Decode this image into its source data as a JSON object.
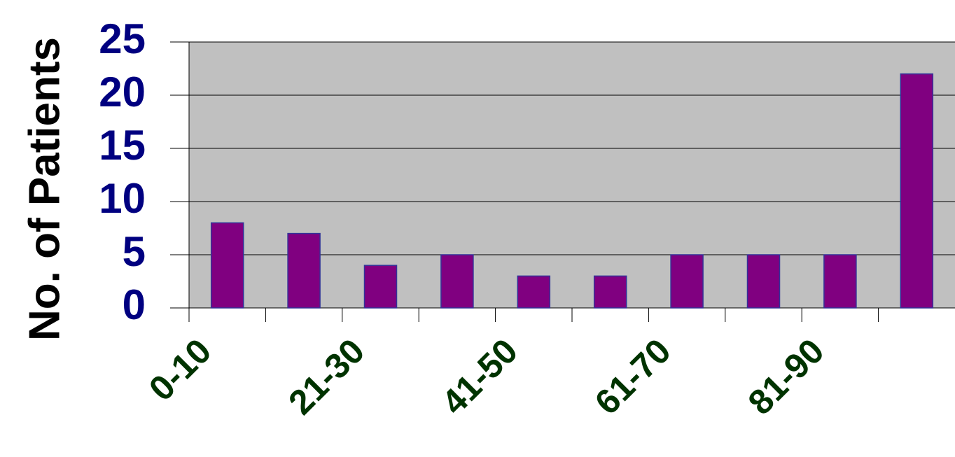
{
  "chart_data": {
    "type": "bar",
    "y_label": "No. of Patients",
    "categories": [
      "0-10",
      null,
      "21-30",
      null,
      "41-50",
      null,
      "61-70",
      null,
      "81-90",
      null
    ],
    "values": [
      8,
      7,
      4,
      5,
      3,
      3,
      5,
      5,
      5,
      22
    ],
    "color": "#800080",
    "ylim": [
      0,
      25
    ],
    "yticks": [
      0,
      5,
      10,
      15,
      20,
      25
    ],
    "grid": true
  }
}
